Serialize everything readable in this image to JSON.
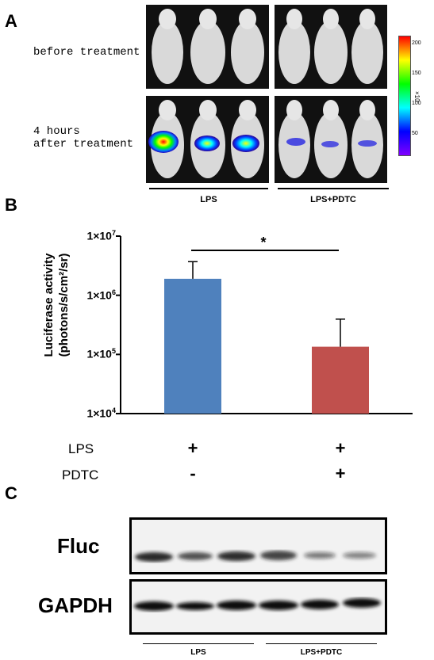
{
  "panelA": {
    "letter": "A",
    "row_labels": [
      "before treatment",
      "4 hours\nafter treatment"
    ],
    "groups": [
      "LPS",
      "LPS+PDTC"
    ],
    "colorbar": {
      "ticks": [
        "200",
        "150",
        "100",
        "50"
      ],
      "unit": "×10",
      "colors": [
        "#ff0000",
        "#ffff00",
        "#00ff00",
        "#00ffff",
        "#0000ff",
        "#8000ff"
      ]
    }
  },
  "panelB": {
    "letter": "B",
    "row_labels": {
      "lps": "LPS",
      "pdtc": "PDTC"
    },
    "signs": {
      "lps": [
        "+",
        "+"
      ],
      "pdtc": [
        "-",
        "+"
      ]
    },
    "significance": "*"
  },
  "panelC": {
    "letter": "C",
    "bands": [
      "Fluc",
      "GAPDH"
    ],
    "groups": [
      "LPS",
      "LPS+PDTC"
    ]
  },
  "chart_data": {
    "type": "bar",
    "categories": [
      "LPS",
      "LPS+PDTC"
    ],
    "values": [
      1900000,
      135000
    ],
    "errors": [
      1800000,
      260000
    ],
    "colors": [
      "#4f81bd",
      "#c0504d"
    ],
    "yscale": "log",
    "ylim": [
      10000,
      10000000
    ],
    "ytick_values": [
      10000,
      100000,
      1000000,
      10000000
    ],
    "ytick_labels": [
      {
        "base": "1×10",
        "exp": "4"
      },
      {
        "base": "1×10",
        "exp": "5"
      },
      {
        "base": "1×10",
        "exp": "6"
      },
      {
        "base": "1×10",
        "exp": "7"
      }
    ],
    "ylabel": "Luciferase activity",
    "ylabel2": "(photons/s/cm²/sr)",
    "title": "",
    "xlabel": ""
  }
}
